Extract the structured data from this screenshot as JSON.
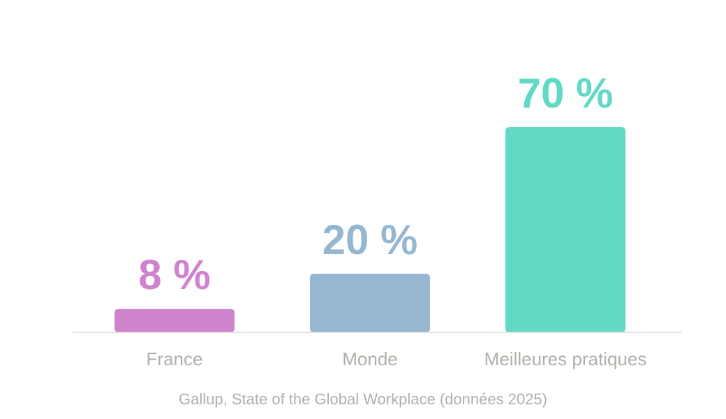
{
  "chart_data": {
    "type": "bar",
    "categories": [
      "France",
      "Monde",
      "Meilleures pratiques"
    ],
    "values": [
      8,
      20,
      70
    ],
    "value_labels": [
      "8 %",
      "20 %",
      "70 %"
    ],
    "colors": [
      "#cf83cf",
      "#96b7d1",
      "#62d9c5"
    ],
    "ylim": [
      0,
      100
    ],
    "source": "Gallup, State of the Global Workplace (données 2025)"
  }
}
